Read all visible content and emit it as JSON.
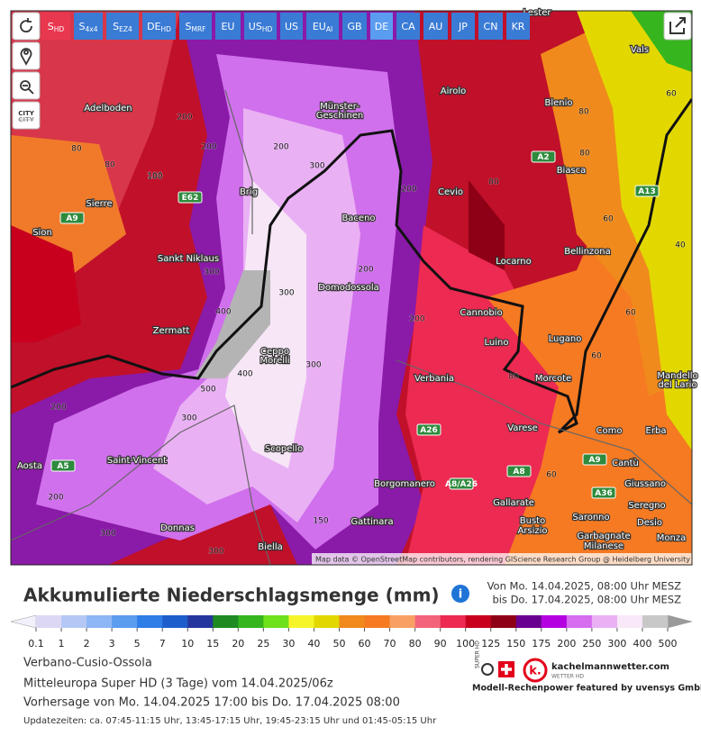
{
  "toolbar": {
    "models": [
      {
        "main": "S",
        "sub": "HD"
      },
      {
        "main": "S",
        "sub": "4x4"
      },
      {
        "main": "S",
        "sub": "EZ4"
      },
      {
        "main": "DE",
        "sub": "HD"
      },
      {
        "main": "S",
        "sub": "MRF"
      },
      {
        "main": "EU"
      },
      {
        "main": "US",
        "sub": "HD"
      },
      {
        "main": "US"
      },
      {
        "main": "EU",
        "sub": "AI"
      },
      {
        "main": "GB"
      },
      {
        "main": "DE"
      },
      {
        "main": "CA"
      },
      {
        "main": "AU"
      },
      {
        "main": "JP"
      },
      {
        "main": "CN"
      },
      {
        "main": "KR"
      }
    ],
    "city_button": "CITY"
  },
  "map": {
    "places": [
      "Adelboden",
      "Münster-",
      "Geschinen",
      "Airolo",
      "Blenio",
      "Vals",
      "Biasca",
      "Brig",
      "Cevio",
      "Sierre",
      "Baceno",
      "Sion",
      "Bellinzona",
      "Sankt Niklaus",
      "Locarno",
      "Domodossola",
      "Cannobio",
      "Zermatt",
      "Lugano",
      "Luino",
      "Ceppo",
      "Morelli",
      "Verbania",
      "Morcote",
      "Mandello",
      "del Lario",
      "Varese",
      "Como",
      "Erba",
      "Aosta",
      "Saint-Vincent",
      "Cantù",
      "Scopello",
      "Giussano",
      "Borgomanero",
      "Gallarate",
      "Seregno",
      "Busto",
      "Arsizio",
      "Saronno",
      "Desio",
      "Gattinara",
      "Donnas",
      "Biella",
      "Garbagnate",
      "Milanese",
      "Monza",
      "Lester"
    ],
    "roads": [
      "E62",
      "A9",
      "A2",
      "A13",
      "A26",
      "A8/A26",
      "A8",
      "A9",
      "A36",
      "A5"
    ],
    "contour_labels": [
      "80",
      "80",
      "100",
      "200",
      "200",
      "300",
      "300",
      "300",
      "400",
      "400",
      "500",
      "300",
      "200",
      "200",
      "200",
      "200",
      "300",
      "80",
      "80",
      "60",
      "60",
      "60",
      "80",
      "40",
      "200",
      "300",
      "300",
      "150",
      "200",
      "100",
      "60",
      "80",
      "60"
    ],
    "attribution": "Map data © OpenStreetMap contributors, rendering GIScience Research Group @ Heidelberg University"
  },
  "legend": {
    "title": "Akkumulierte Niederschlagsmenge (mm)",
    "period_from": "Von Mo. 14.04.2025, 08:00 Uhr MESZ",
    "period_to": "bis Do. 17.04.2025, 08:00 Uhr MESZ",
    "ticks": [
      "0.1",
      "1",
      "2",
      "3",
      "5",
      "7",
      "10",
      "15",
      "20",
      "25",
      "30",
      "40",
      "50",
      "60",
      "70",
      "80",
      "90",
      "100",
      "125",
      "150",
      "175",
      "200",
      "250",
      "300",
      "400",
      "500"
    ],
    "colors": [
      "#dcd8f4",
      "#b4c8f6",
      "#8cb6f6",
      "#5c9cee",
      "#2f7de6",
      "#1e5ecc",
      "#25379e",
      "#1f8a22",
      "#36b51e",
      "#6fe01c",
      "#f5f52a",
      "#e2d800",
      "#f08a1c",
      "#f57a22",
      "#f8a064",
      "#f2647a",
      "#ec2a52",
      "#c8001e",
      "#8e0016",
      "#6a0090",
      "#b400e0",
      "#d66cf0",
      "#eab0f4",
      "#f8e8f8",
      "#c8c8c8"
    ],
    "low_color": "#f2f0fa",
    "high_color": "#9a9a9a"
  },
  "info": {
    "region": "Verbano-Cusio-Ossola",
    "model": "Mitteleuropa Super HD (3 Tage) vom 14.04.2025/06z",
    "forecast": "Vorhersage von Mo. 14.04.2025 17:00 bis Do. 17.04.2025 08:00",
    "updates": "Updatezeiten: ca. 07:45-11:15 Uhr, 13:45-17:15 Uhr, 19:45-23:15 Uhr und 01:45-05:15 Uhr"
  },
  "branding": {
    "super_hd": "SUPER HD",
    "site": "kachelmannwetter.com",
    "wetter_hd": "WETTER HD",
    "sponsor": "Modell-Rechenpower featured by uvensys GmbH"
  }
}
